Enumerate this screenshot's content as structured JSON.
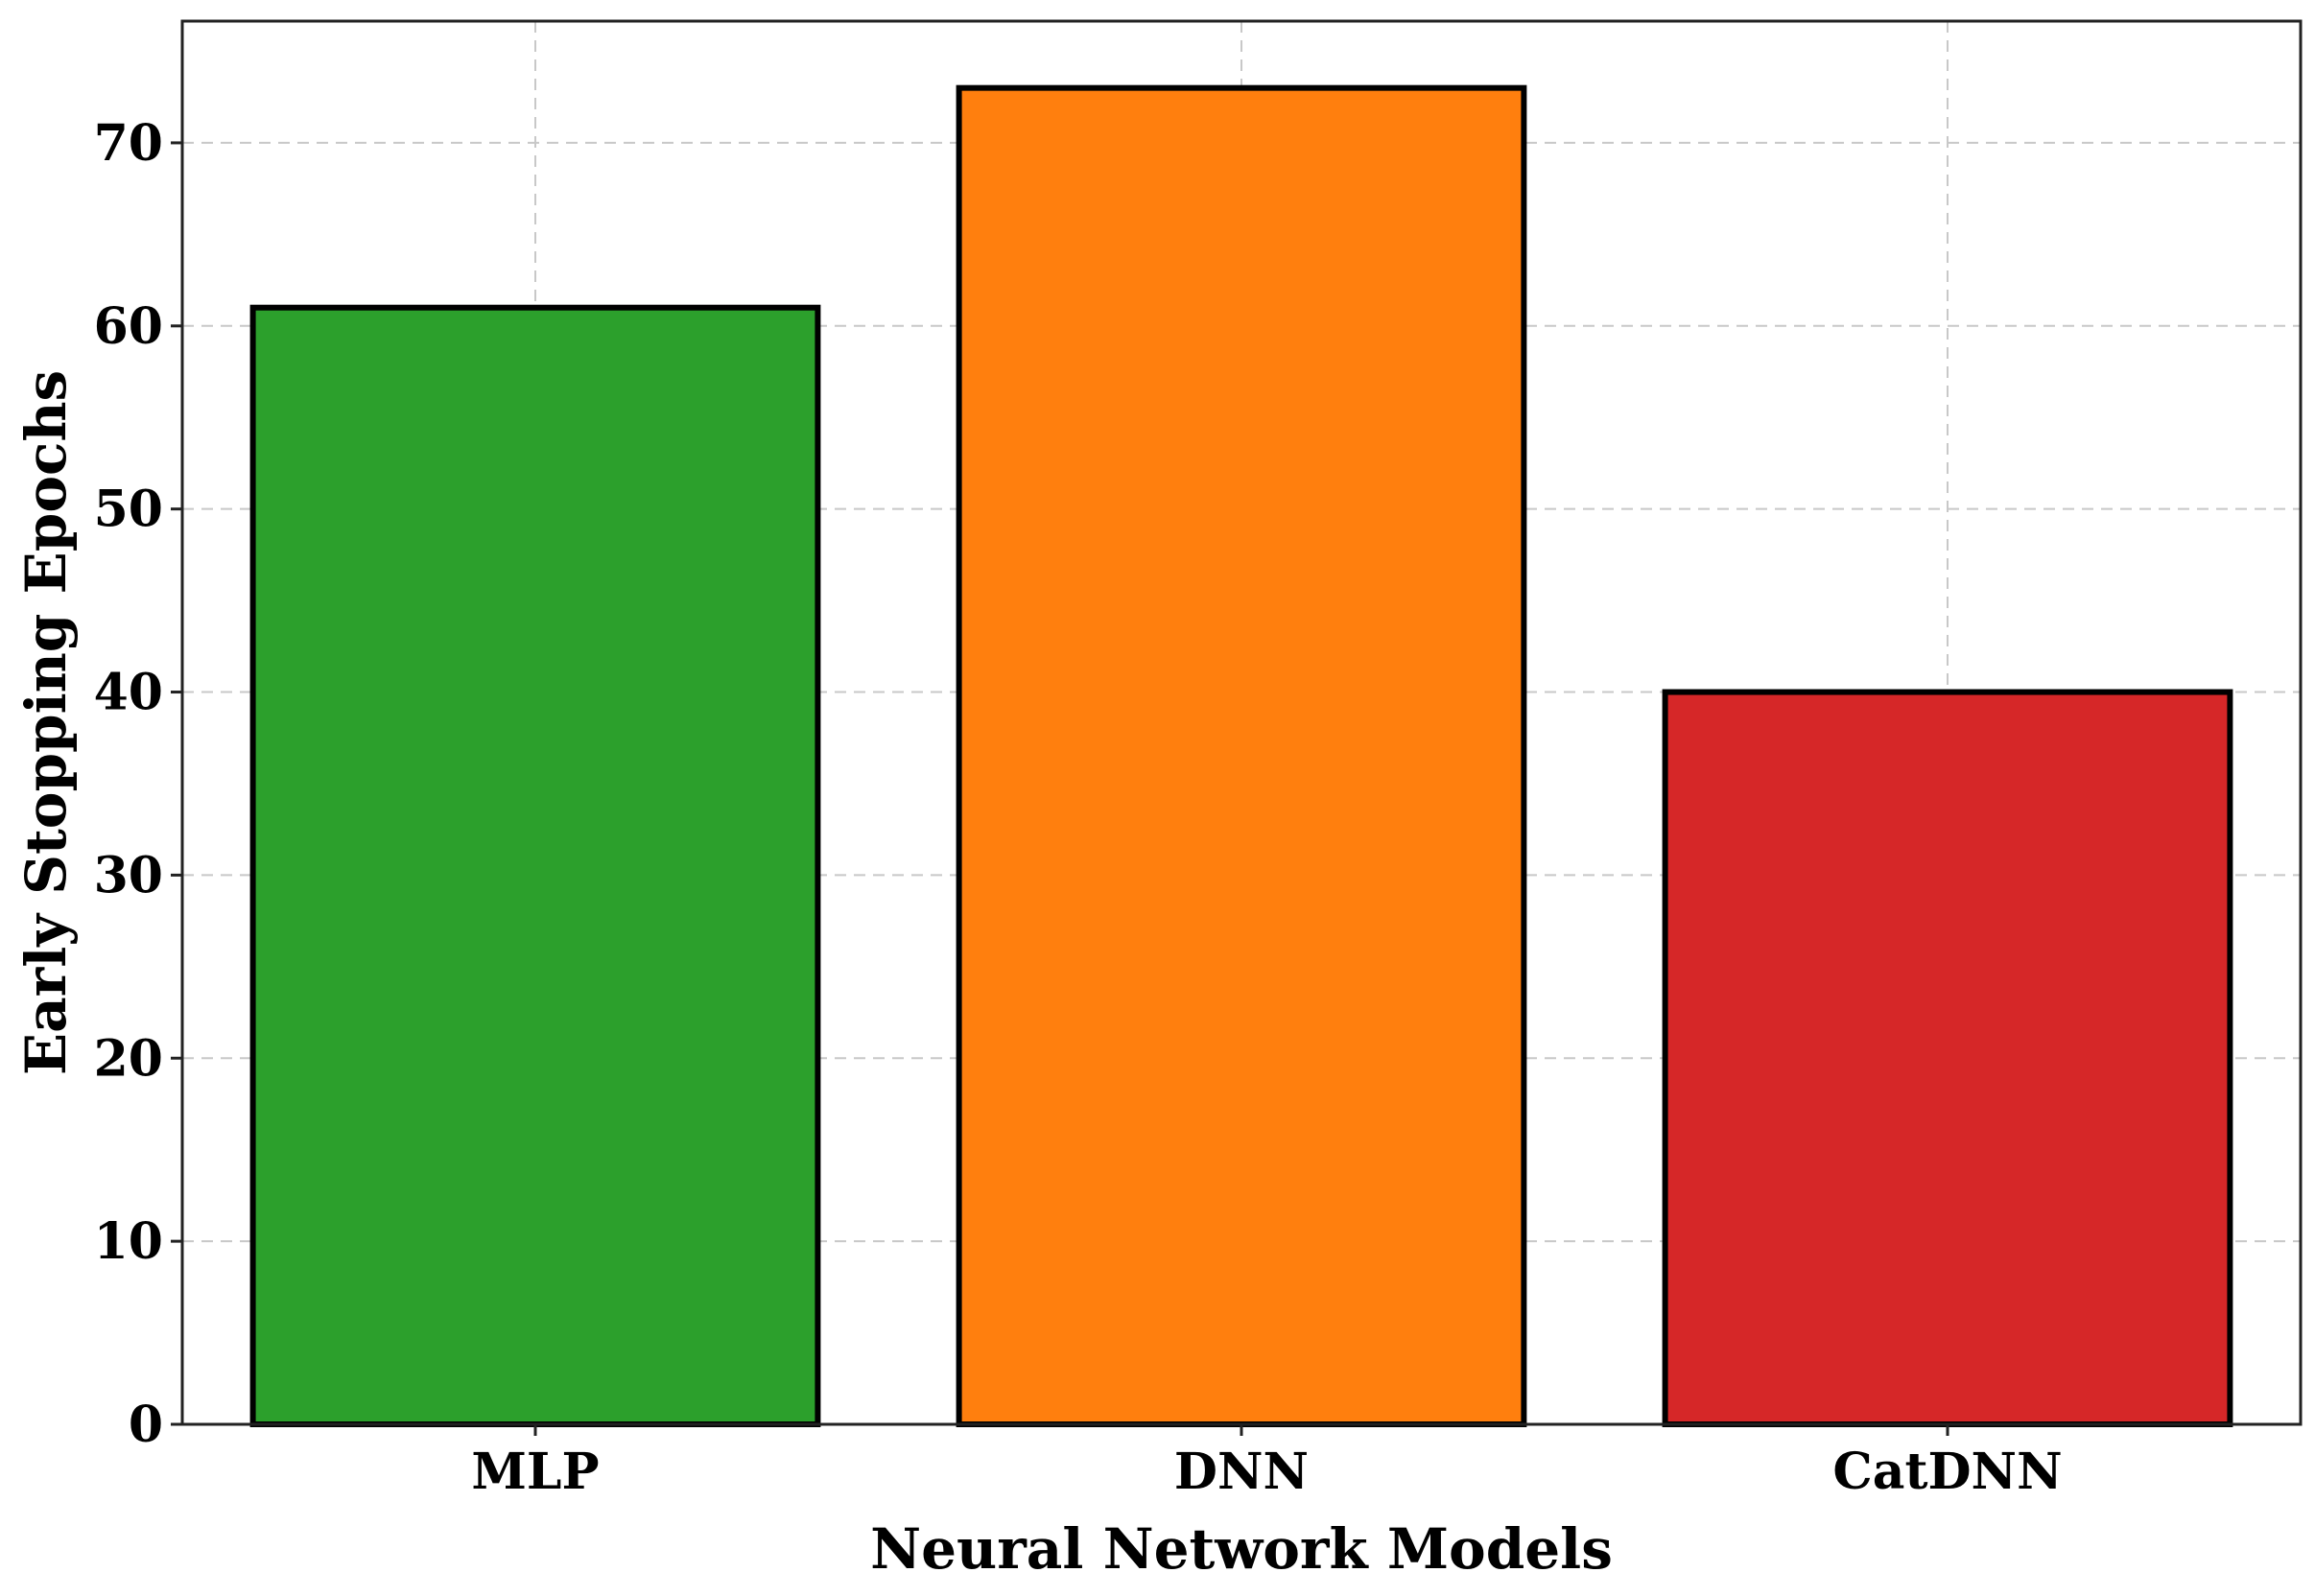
{
  "chart_data": {
    "type": "bar",
    "categories": [
      "MLP",
      "DNN",
      "CatDNN"
    ],
    "values": [
      61,
      73,
      40
    ],
    "colors": [
      "#2ca02c",
      "#ff7f0e",
      "#d62728"
    ],
    "edge_color": "#000000",
    "title": "",
    "xlabel": "Neural Network Models",
    "ylabel": "Early Stopping Epochs",
    "ylim": [
      0,
      76.65
    ],
    "yticks": [
      0,
      10,
      20,
      30,
      40,
      50,
      60,
      70
    ],
    "grid": true,
    "grid_style": "dashed"
  }
}
